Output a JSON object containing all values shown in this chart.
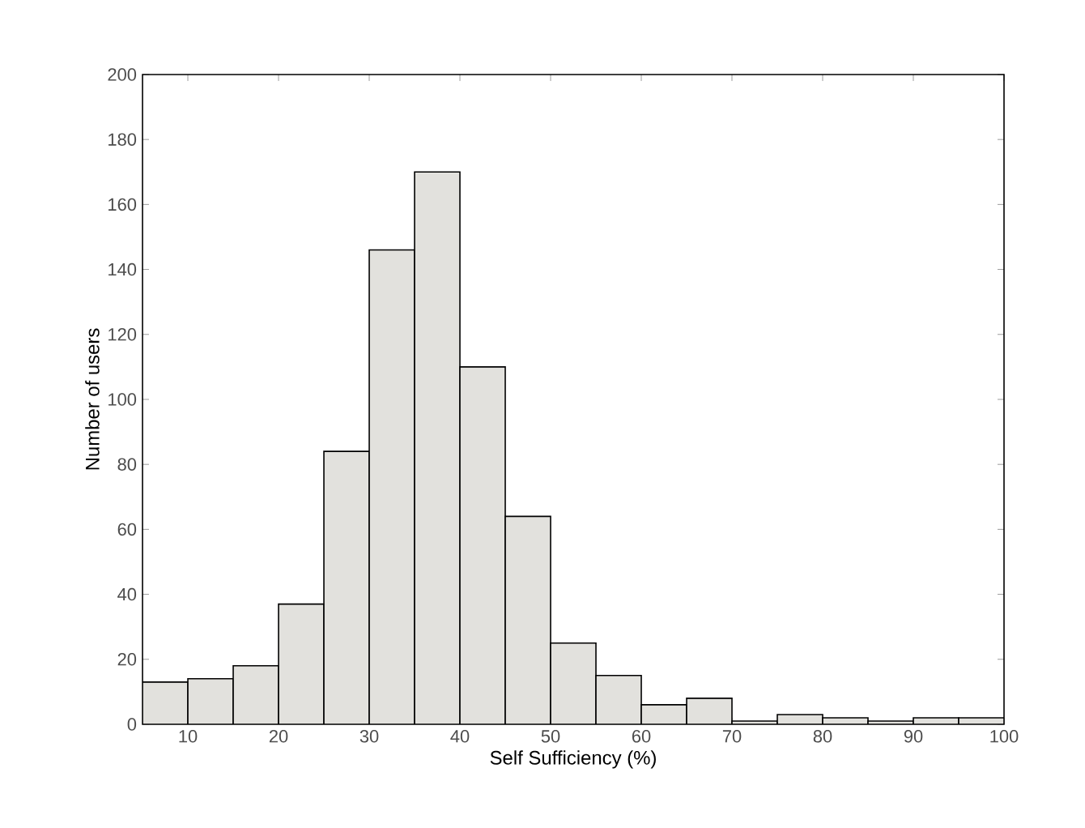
{
  "chart_data": {
    "type": "histogram",
    "xlabel": "Self Sufficiency (%)",
    "ylabel": "Number of users",
    "bins": [
      5,
      10,
      15,
      20,
      25,
      30,
      35,
      40,
      45,
      50,
      55,
      60,
      65,
      70,
      75,
      80,
      85,
      90,
      95,
      100
    ],
    "values": [
      13,
      14,
      18,
      37,
      84,
      146,
      170,
      110,
      64,
      25,
      15,
      6,
      8,
      1,
      3,
      2,
      1,
      2,
      2
    ],
    "color": "#e2e1dd",
    "xlim": [
      5,
      100
    ],
    "xticks": [
      10,
      20,
      30,
      40,
      50,
      60,
      70,
      80,
      90,
      100
    ],
    "ylim": [
      0,
      200
    ],
    "yticks": [
      0,
      20,
      40,
      60,
      80,
      100,
      120,
      140,
      160,
      180,
      200
    ],
    "grid": false
  }
}
